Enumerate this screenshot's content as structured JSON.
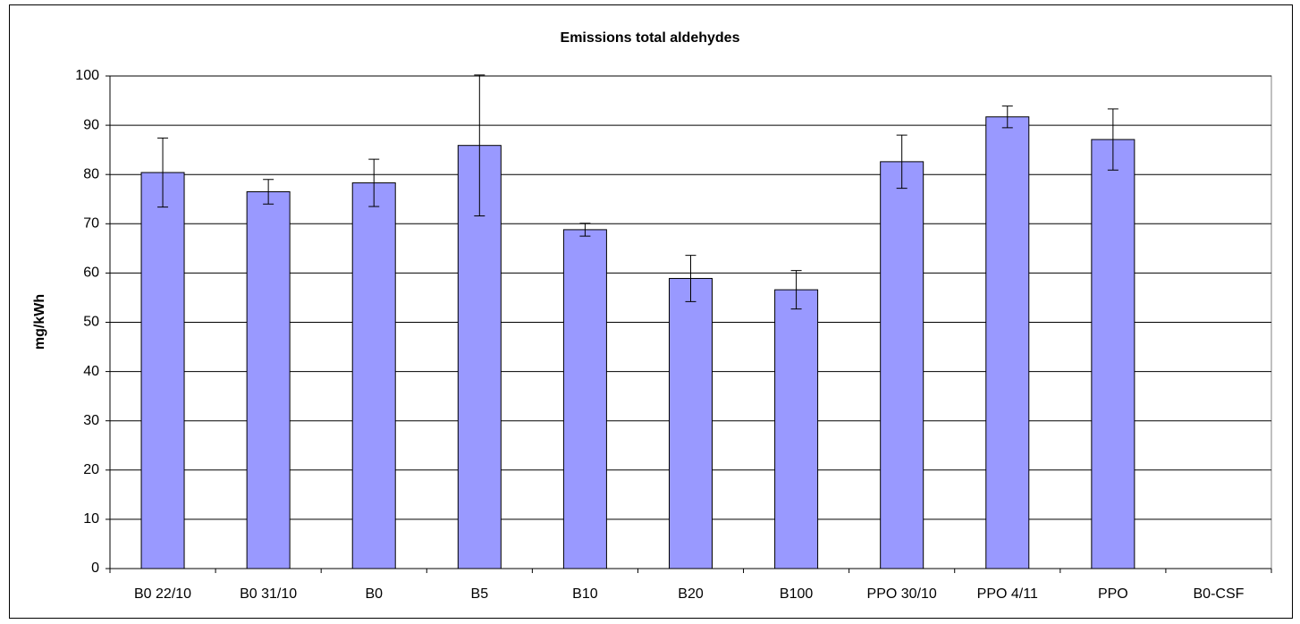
{
  "chart_data": {
    "type": "bar",
    "title": "Emissions total aldehydes",
    "y_label": "mg/kWh",
    "categories": [
      "B0 22/10",
      "B0 31/10",
      "B0",
      "B5",
      "B10",
      "B20",
      "B100",
      "PPO 30/10",
      "PPO 4/11",
      "PPO",
      "B0-CSF"
    ],
    "values": [
      80.4,
      76.5,
      78.3,
      85.9,
      68.8,
      58.9,
      56.6,
      82.6,
      91.7,
      87.1,
      null
    ],
    "errors": [
      7.0,
      2.5,
      4.8,
      14.3,
      1.3,
      4.7,
      3.9,
      5.4,
      2.2,
      6.2,
      null
    ],
    "color": "#9999ff",
    "ylim": [
      0,
      100
    ],
    "yticks": [
      0,
      10,
      20,
      30,
      40,
      50,
      60,
      70,
      80,
      90,
      100
    ],
    "grid": true
  }
}
